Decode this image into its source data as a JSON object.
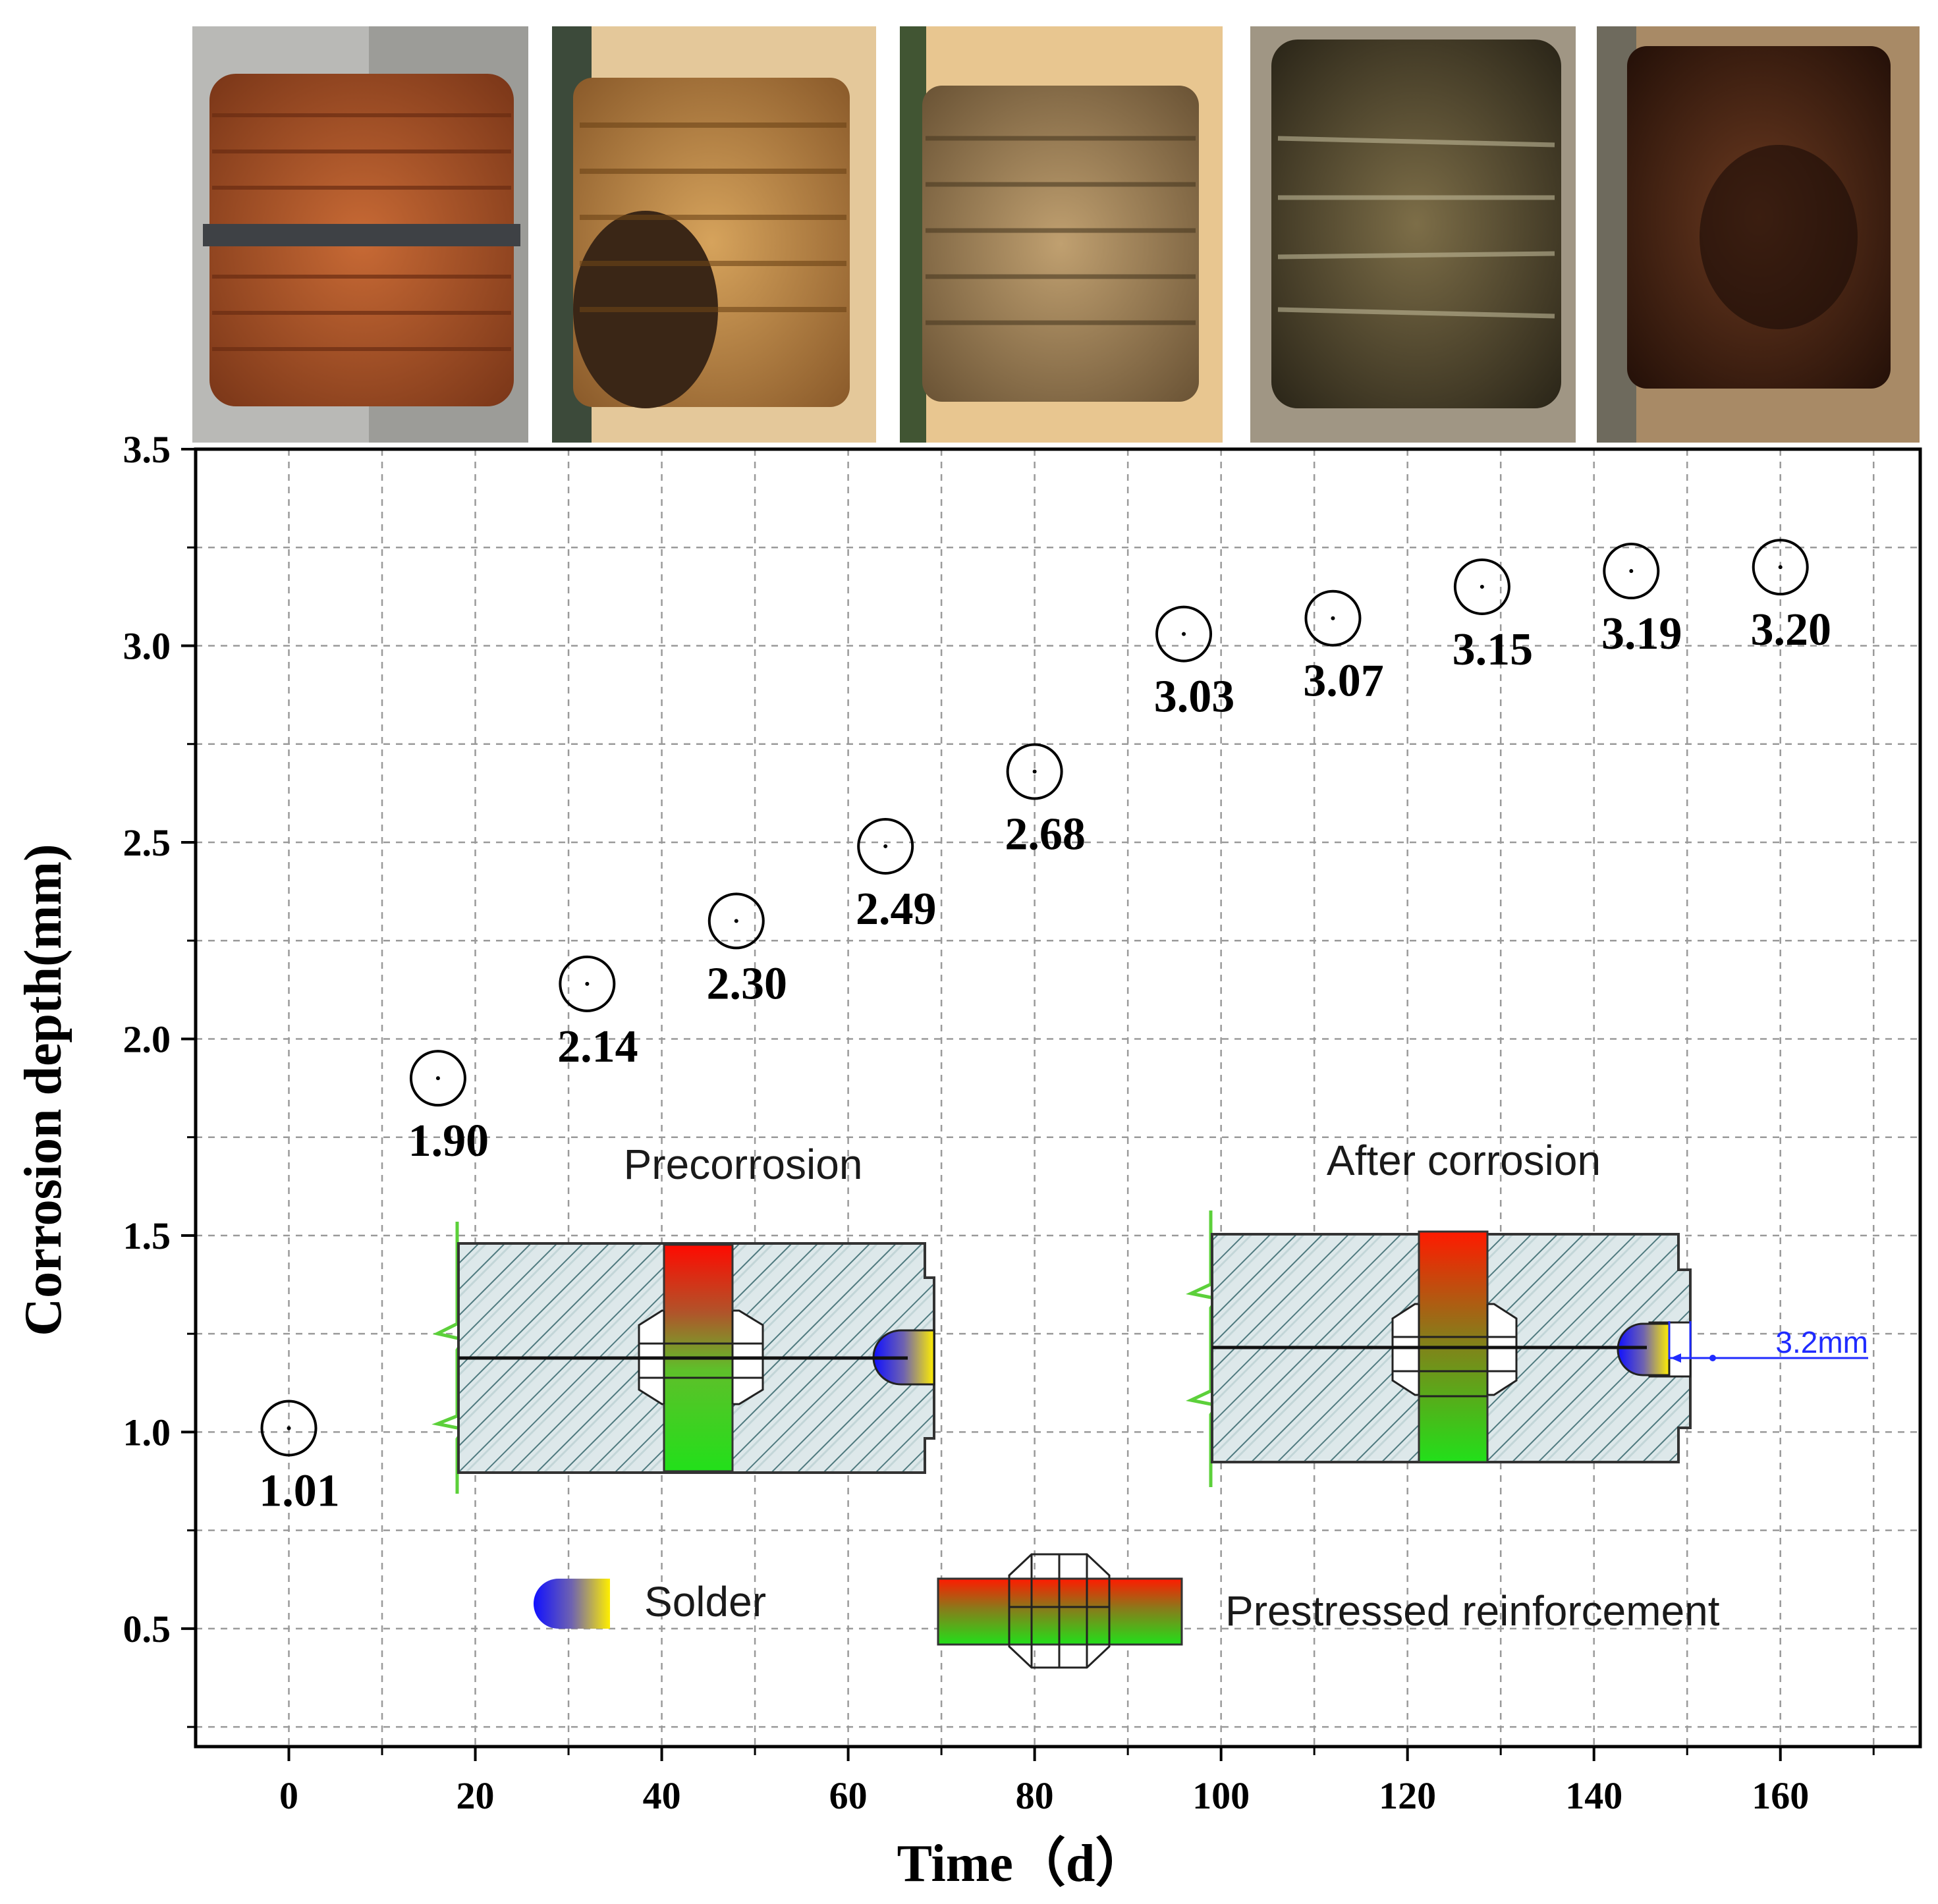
{
  "chart_data": {
    "type": "scatter",
    "title": "",
    "xlabel": "Time（d）",
    "ylabel": "Corrosion depth(mm)",
    "xlim": [
      -10,
      175
    ],
    "ylim": [
      0.2,
      3.5
    ],
    "x_ticks": [
      0,
      20,
      40,
      60,
      80,
      100,
      120,
      140,
      160
    ],
    "y_ticks": [
      0.5,
      1.0,
      1.5,
      2.0,
      2.5,
      3.0,
      3.5
    ],
    "x_tick_labels": [
      "0",
      "20",
      "40",
      "60",
      "80",
      "100",
      "120",
      "140",
      "160"
    ],
    "y_tick_labels": [
      "0.5",
      "1.0",
      "1.5",
      "2.0",
      "2.5",
      "3.0",
      "3.5"
    ],
    "grid": true,
    "series": [
      {
        "name": "Corrosion depth",
        "x": [
          0,
          16,
          32,
          48,
          64,
          80,
          96,
          112,
          128,
          144,
          160
        ],
        "values": [
          1.01,
          1.9,
          2.14,
          2.3,
          2.49,
          2.68,
          3.03,
          3.07,
          3.15,
          3.19,
          3.2
        ],
        "labels": [
          "1.01",
          "1.90",
          "2.14",
          "2.30",
          "2.49",
          "2.68",
          "3.03",
          "3.07",
          "3.15",
          "3.19",
          "3.20"
        ]
      }
    ],
    "annotations": {
      "precorrosion": "Precorrosion",
      "after_corrosion": "After corrosion",
      "dimension": "3.2mm",
      "legend_solder": "Solder",
      "legend_reinforcement": "Prestressed reinforcement"
    }
  },
  "photos": [
    {
      "name": "photo-1",
      "color": "#a9542a"
    },
    {
      "name": "photo-2",
      "color": "#b78b4c"
    },
    {
      "name": "photo-3",
      "color": "#9b7d55"
    },
    {
      "name": "photo-4",
      "color": "#4d4530"
    },
    {
      "name": "photo-5",
      "color": "#4a2a18"
    }
  ]
}
